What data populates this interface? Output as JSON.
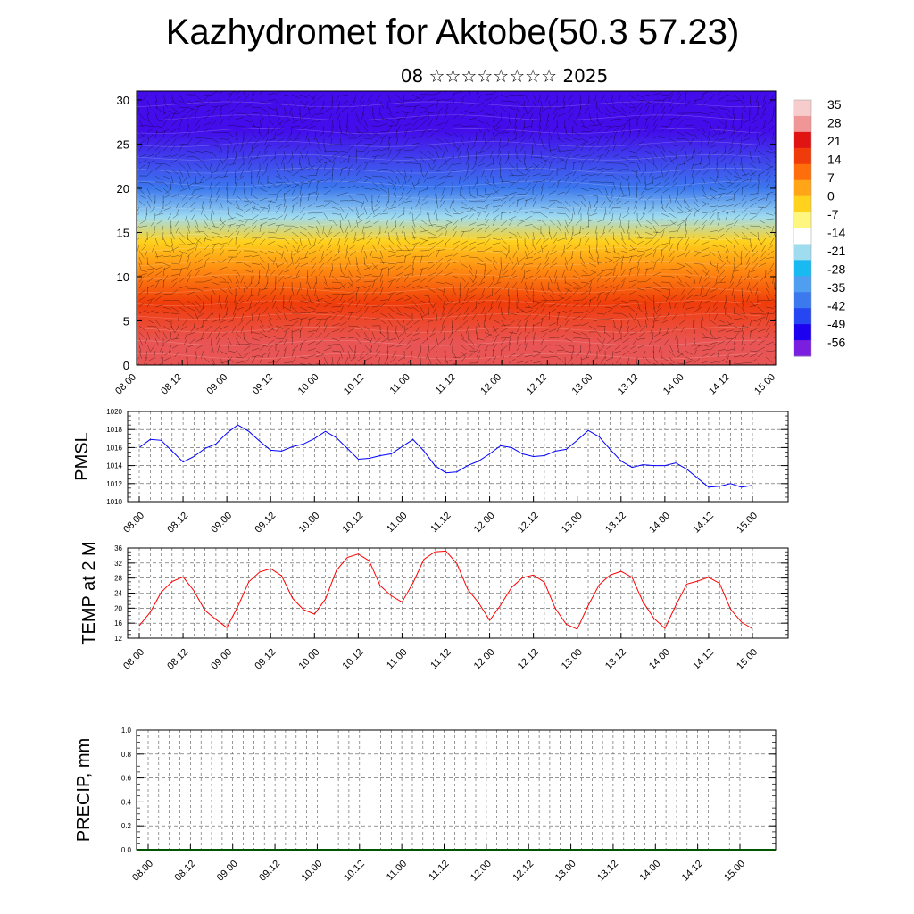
{
  "header": {
    "title": "Kazhydromet for Aktobe(50.3 57.23)",
    "subtitle": "08 ☆☆☆☆☆☆☆☆ 2025"
  },
  "colors": {
    "pmsl_line": "#0000ff",
    "temp_line": "#ff0000",
    "precip_line": "#005500",
    "colorbar": [
      "#7a1fe0",
      "#1e00f0",
      "#2546f0",
      "#3c78ee",
      "#4f9ef0",
      "#19b9f2",
      "#9fdcf0",
      "#ffffff",
      "#fff680",
      "#ffd21e",
      "#ffa517",
      "#ff6e0a",
      "#f03c0a",
      "#e11414",
      "#f09696",
      "#f7cccc"
    ]
  },
  "chart_data": [
    {
      "type": "heatmap",
      "name_in_image": "temperature-wind cross-section",
      "yticks": [
        0,
        5,
        10,
        15,
        20,
        25,
        30
      ],
      "ylim": [
        0,
        31
      ],
      "xticks": [
        "08.00",
        "08.12",
        "09.00",
        "09.12",
        "10.00",
        "10.12",
        "11.00",
        "11.12",
        "12.00",
        "12.12",
        "13.00",
        "13.12",
        "14.00",
        "14.12",
        "15.00"
      ],
      "colorbar_labels": [
        "35",
        "28",
        "21",
        "14",
        "7",
        "0",
        "-7",
        "-14",
        "-21",
        "-28",
        "-35",
        "-42",
        "-49",
        "-56"
      ],
      "bands": [
        {
          "level_bottom": 0,
          "level_top": 5,
          "value": 30
        },
        {
          "level_bottom": 5,
          "level_top": 9,
          "value": 20
        },
        {
          "level_bottom": 9,
          "level_top": 12.5,
          "value": 10
        },
        {
          "level_bottom": 12.5,
          "level_top": 15.5,
          "value": 0
        },
        {
          "level_bottom": 15.5,
          "level_top": 18,
          "value": -20
        },
        {
          "level_bottom": 18,
          "level_top": 22,
          "value": -40
        },
        {
          "level_bottom": 22,
          "level_top": 31,
          "value": -56
        }
      ]
    },
    {
      "type": "line",
      "ylabel": "PMSL",
      "ylim": [
        1010,
        1020
      ],
      "yticks": [
        1010,
        1012,
        1014,
        1016,
        1018,
        1020
      ],
      "xticks": [
        "08.00",
        "08.12",
        "09.00",
        "09.12",
        "10.00",
        "10.12",
        "11.00",
        "11.12",
        "12.00",
        "12.12",
        "13.00",
        "13.12",
        "14.00",
        "14.12",
        "15.00"
      ],
      "series": [
        {
          "values": [
            1016.0,
            1016.9,
            1016.8,
            1015.6,
            1014.4,
            1015.0,
            1015.9,
            1016.4,
            1017.6,
            1018.5,
            1017.8,
            1016.7,
            1015.7,
            1015.6,
            1016.1,
            1016.4,
            1017.0,
            1017.8,
            1017.1,
            1015.9,
            1014.7,
            1014.8,
            1015.1,
            1015.3,
            1016.1,
            1016.9,
            1015.6,
            1014.0,
            1013.2,
            1013.3,
            1014.0,
            1014.5,
            1015.3,
            1016.2,
            1016.0,
            1015.3,
            1015.0,
            1015.1,
            1015.6,
            1015.8,
            1016.8,
            1017.9,
            1017.2,
            1015.8,
            1014.5,
            1013.8,
            1014.1,
            1014.0,
            1014.0,
            1014.3,
            1013.6,
            1012.6,
            1011.6,
            1011.7,
            1012.0,
            1011.6,
            1011.8
          ]
        }
      ]
    },
    {
      "type": "line",
      "ylabel": "TEMP at 2 M",
      "ylim": [
        12,
        36
      ],
      "yticks": [
        12,
        16,
        20,
        24,
        28,
        32,
        36
      ],
      "xticks": [
        "08.00",
        "08.12",
        "09.00",
        "09.12",
        "10.00",
        "10.12",
        "11.00",
        "11.12",
        "12.00",
        "12.12",
        "13.00",
        "13.12",
        "14.00",
        "14.12",
        "15.00"
      ],
      "series": [
        {
          "values": [
            15.3,
            18.9,
            24.2,
            27.1,
            28.3,
            24.6,
            19.4,
            17.0,
            14.8,
            20.4,
            27.0,
            29.6,
            30.5,
            28.6,
            22.6,
            19.6,
            18.4,
            22.4,
            30.0,
            33.5,
            34.4,
            32.6,
            26.0,
            23.3,
            21.6,
            26.7,
            33.0,
            35.0,
            35.2,
            31.9,
            25.0,
            21.4,
            16.7,
            20.8,
            25.5,
            28.1,
            28.8,
            26.9,
            19.9,
            15.7,
            14.4,
            20.7,
            26.2,
            28.8,
            29.8,
            28.2,
            21.7,
            17.3,
            14.6,
            20.7,
            26.4,
            27.2,
            28.2,
            26.6,
            19.7,
            16.3,
            14.5
          ]
        }
      ]
    },
    {
      "type": "line",
      "ylabel": "PRECIP, mm",
      "ylim": [
        0,
        1
      ],
      "yticks": [
        "0.0",
        "0.2",
        "0.4",
        "0.6",
        "0.8",
        "1.0"
      ],
      "xticks": [
        "08.00",
        "08.12",
        "09.00",
        "09.12",
        "10.00",
        "10.12",
        "11.00",
        "11.12",
        "12.00",
        "12.12",
        "13.00",
        "13.12",
        "14.00",
        "14.12",
        "15.00"
      ],
      "series": [
        {
          "values": [
            0,
            0
          ]
        }
      ]
    }
  ]
}
